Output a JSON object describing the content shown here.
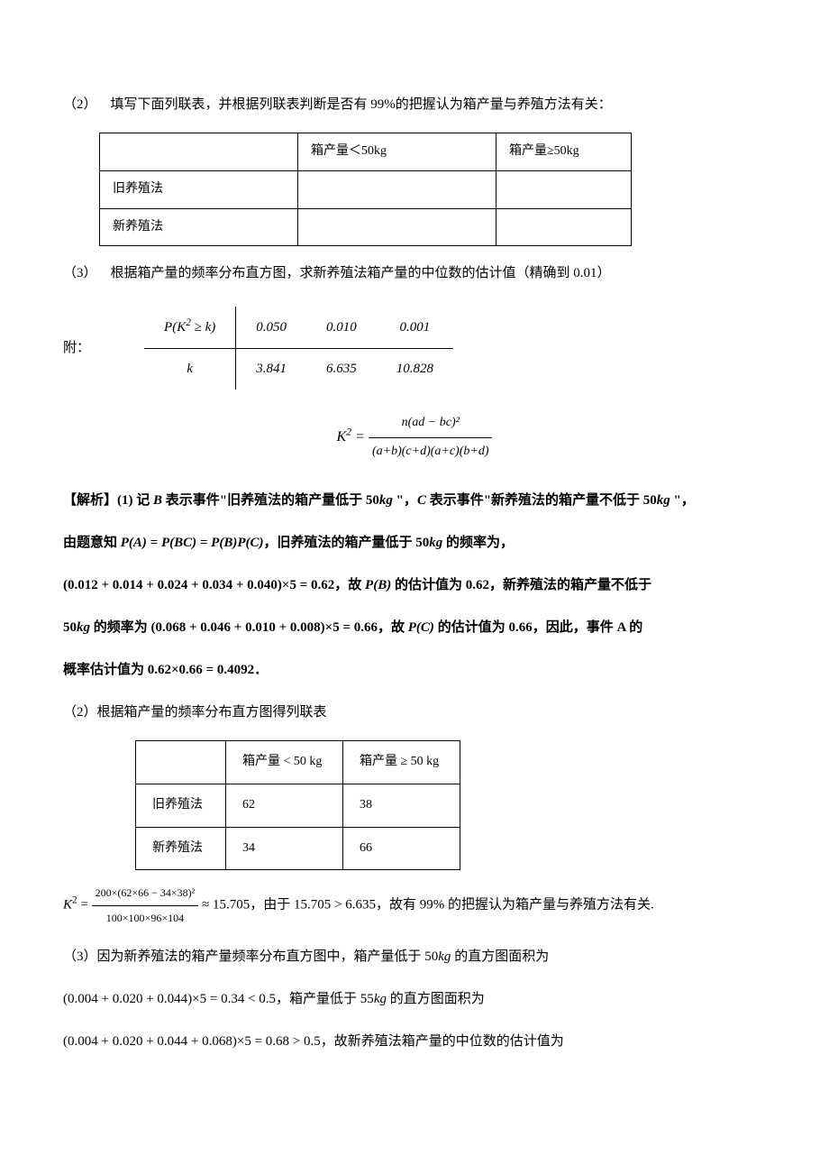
{
  "q2": {
    "label": "（2）",
    "prompt": "填写下面列联表，并根据列联表判断是否有 99%的把握认为箱产量与养殖方法有关：",
    "table": {
      "col1": "箱产量＜50kg",
      "col2": "箱产量≥50kg",
      "row1": "旧养殖法",
      "row2": "新养殖法"
    }
  },
  "q3": {
    "label": "（3）",
    "prompt": "根据箱产量的频率分布直方图，求新养殖法箱产量的中位数的估计值（精确到 0.01）"
  },
  "attach": {
    "label": "附：",
    "critical": {
      "header_stat": "P(K² ≥ k)",
      "header_k": "k",
      "p_vals": [
        "0.050",
        "0.010",
        "0.001"
      ],
      "k_vals": [
        "3.841",
        "6.635",
        "10.828"
      ]
    },
    "formula_lhs": "K² =",
    "formula_num": "n(ad − bc)²",
    "formula_den": "(a+b)(c+d)(a+c)(b+d)"
  },
  "solution": {
    "p1_prefix": "【解析】(1) 记 ",
    "p1_b": "B",
    "p1_mid1": " 表示事件\"旧养殖法的箱产量低于 50",
    "p1_kg": "kg",
    "p1_mid2": " \"，",
    "p1_c": "C",
    "p1_mid3": " 表示事件\"新养殖法的箱产量不低于 50",
    "p1_end": " \"，",
    "p2_a": "由题意知 ",
    "p2_formula": "P(A) = P(BC) = P(B)P(C)",
    "p2_b": "，旧养殖法的箱产量低于 50",
    "p2_c": " 的频率为，",
    "p3_a": "(0.012 + 0.014 + 0.024 + 0.034 + 0.040)×5 = 0.62",
    "p3_b": "，故 ",
    "p3_c": "P(B)",
    "p3_d": " 的估计值为 0.62，新养殖法的箱产量不低于",
    "p4_a": "50",
    "p4_b": " 的频率为 ",
    "p4_c": "(0.068 + 0.046 + 0.010 + 0.008)×5 = 0.66",
    "p4_d": "，故 ",
    "p4_e": "P(C)",
    "p4_f": " 的估计值为 0.66，因此，事件 A 的",
    "p5": "概率估计值为 0.62×0.66 = 0.4092．"
  },
  "sol2": {
    "label": "（2）根据箱产量的频率分布直方图得列联表",
    "table": {
      "col1": "箱产量 < 50 kg",
      "col2": "箱产量 ≥ 50 kg",
      "rows": [
        {
          "name": "旧养殖法",
          "c1": "62",
          "c2": "38"
        },
        {
          "name": "新养殖法",
          "c1": "34",
          "c2": "66"
        }
      ]
    },
    "k2_lhs": "K² =",
    "k2_num": "200×(62×66 − 34×38)²",
    "k2_den": "100×100×96×104",
    "k2_approx": " ≈ 15.705",
    "k2_tail": "，由于 15.705 > 6.635，故有 99% 的把握认为箱产量与养殖方法有关."
  },
  "sol3": {
    "label": "（3）因为新养殖法的箱产量频率分布直方图中，箱产量低于 50",
    "label_b": " 的直方图面积为",
    "line1_a": "(0.004 + 0.020 + 0.044)×5 = 0.34 < 0.5",
    "line1_b": "，箱产量低于 55",
    "line1_c": " 的直方图面积为",
    "line2_a": "(0.004 + 0.020 + 0.044 + 0.068)×5 = 0.68 > 0.5",
    "line2_b": "，故新养殖法箱产量的中位数的估计值为"
  },
  "kg_it": "kg"
}
